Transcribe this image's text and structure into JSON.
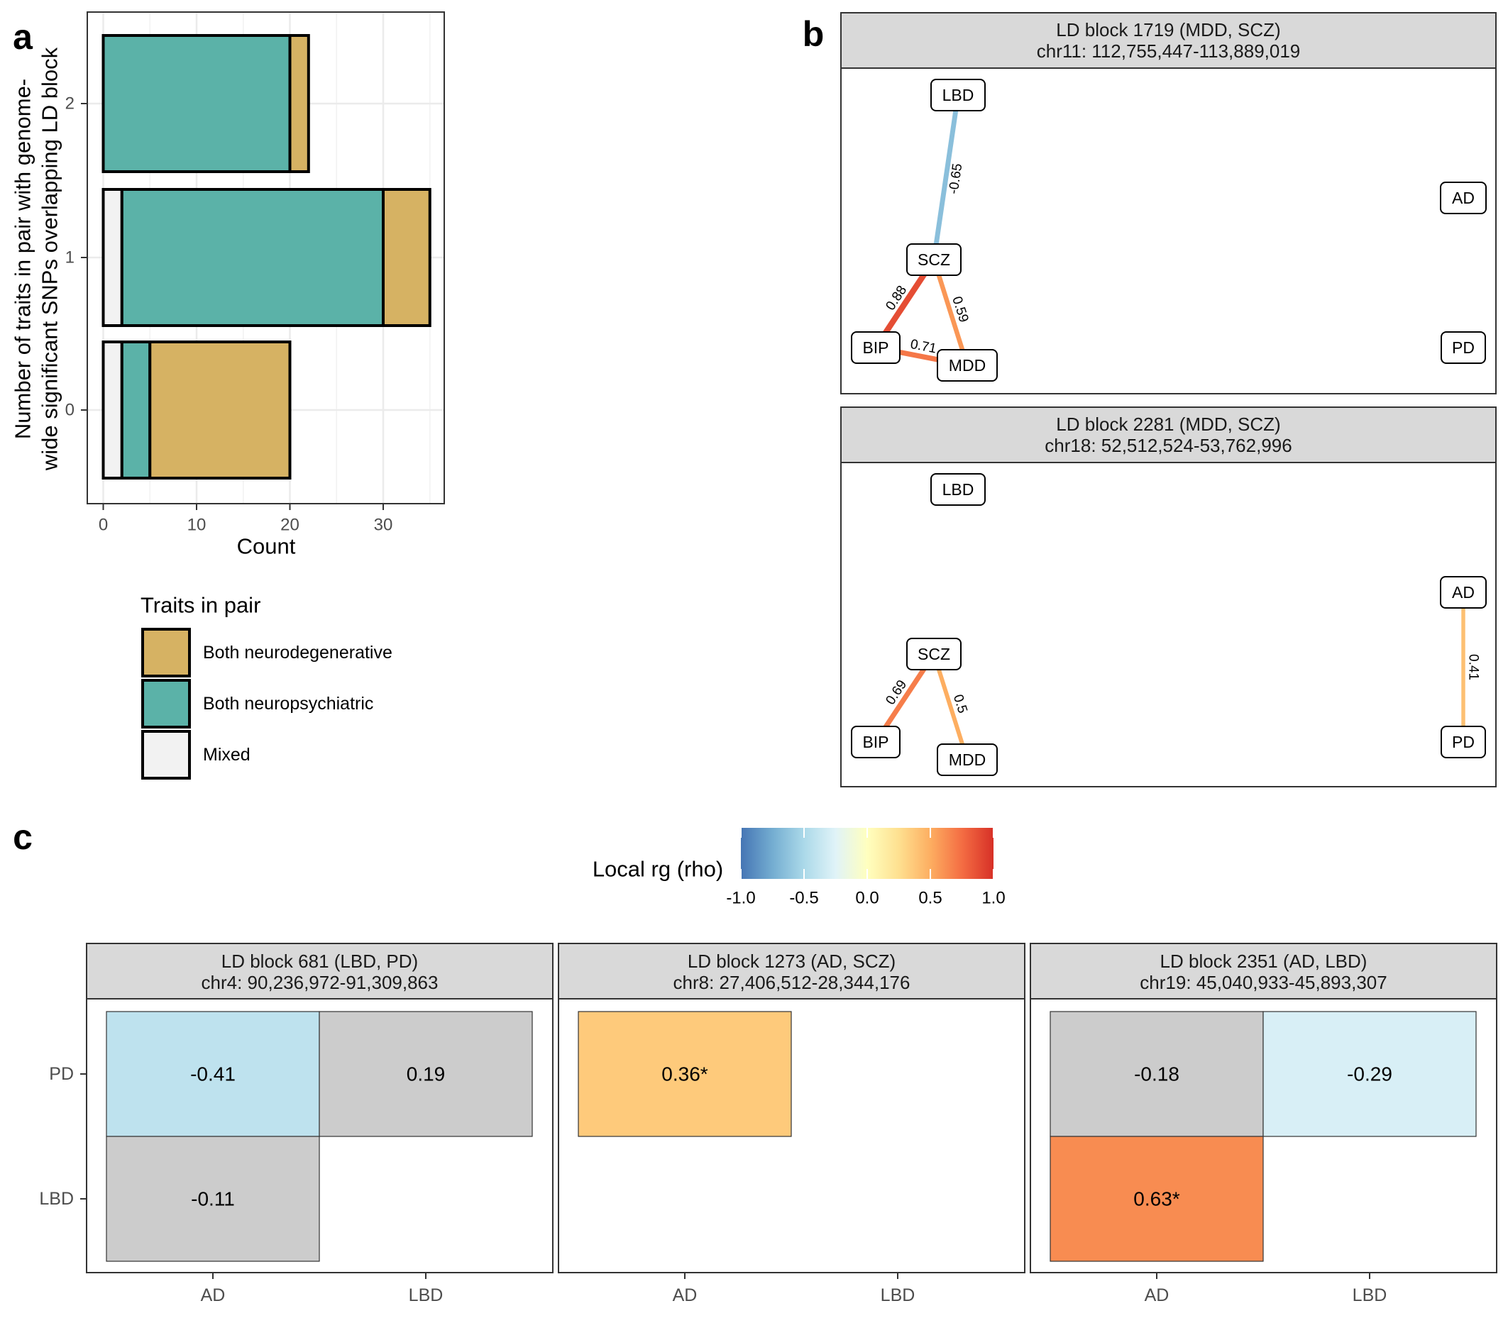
{
  "panel_labels": {
    "a": "a",
    "b": "b",
    "c": "c"
  },
  "colors": {
    "neurodegenerative": "#D6B263",
    "neuropsychiatric": "#5BB2A8",
    "mixed": "#F2F2F2",
    "na": "#CCCCCC",
    "strip": "#D9D9D9"
  },
  "chart_data": [
    {
      "type": "bar",
      "orientation": "horizontal",
      "stacked": true,
      "title": "",
      "xlabel": "Count",
      "ylabel_lines": [
        "Number of traits in pair with genome-",
        "wide significant SNPs overlapping LD block"
      ],
      "categories": [
        "0",
        "1",
        "2"
      ],
      "xlim": [
        0,
        36
      ],
      "xticks": [
        "0",
        "10",
        "20",
        "30"
      ],
      "series": [
        {
          "name": "Mixed",
          "values": [
            2,
            2,
            0
          ]
        },
        {
          "name": "Both neuropsychiatric",
          "values": [
            3,
            28,
            20
          ]
        },
        {
          "name": "Both neurodegenerative",
          "values": [
            15,
            5,
            2
          ]
        }
      ],
      "legend": {
        "title": "Traits in pair",
        "placement": "bottom",
        "items": [
          "Both neurodegenerative",
          "Both neuropsychiatric",
          "Mixed"
        ]
      },
      "grid": true
    },
    {
      "type": "network",
      "panels": [
        {
          "title": "LD block 1719 (MDD, SCZ)",
          "subtitle": "chr11: 112,755,447-113,889,019",
          "nodes": [
            "LBD",
            "AD",
            "SCZ",
            "BIP",
            "MDD",
            "PD"
          ],
          "edges": [
            {
              "from": "LBD",
              "to": "SCZ",
              "rho": -0.65,
              "label": "-0.65"
            },
            {
              "from": "SCZ",
              "to": "BIP",
              "rho": 0.88,
              "label": "0.88"
            },
            {
              "from": "SCZ",
              "to": "MDD",
              "rho": 0.59,
              "label": "0.59"
            },
            {
              "from": "BIP",
              "to": "MDD",
              "rho": 0.71,
              "label": "0.71"
            }
          ]
        },
        {
          "title": "LD block 2281 (MDD, SCZ)",
          "subtitle": "chr18: 52,512,524-53,762,996",
          "nodes": [
            "LBD",
            "AD",
            "SCZ",
            "BIP",
            "MDD",
            "PD"
          ],
          "edges": [
            {
              "from": "SCZ",
              "to": "BIP",
              "rho": 0.69,
              "label": "0.69"
            },
            {
              "from": "SCZ",
              "to": "MDD",
              "rho": 0.5,
              "label": "0.5"
            },
            {
              "from": "AD",
              "to": "PD",
              "rho": 0.41,
              "label": "0.41"
            }
          ]
        }
      ]
    },
    {
      "type": "heatmap",
      "colorbar": {
        "title": "Local rg (rho)",
        "range": [
          -1,
          1
        ],
        "ticks": [
          "-1.0",
          "-0.5",
          "0.0",
          "0.5",
          "1.0"
        ]
      },
      "x_categories": [
        "AD",
        "LBD"
      ],
      "y_categories": [
        "PD",
        "LBD"
      ],
      "panels": [
        {
          "title": "LD block 681 (LBD, PD)",
          "subtitle": "chr4: 90,236,972-91,309,863",
          "cells": [
            {
              "x": "AD",
              "y": "PD",
              "rho": -0.41,
              "significant": true,
              "label": "-0.41"
            },
            {
              "x": "LBD",
              "y": "PD",
              "rho": 0.19,
              "significant": false,
              "label": "0.19"
            },
            {
              "x": "AD",
              "y": "LBD",
              "rho": -0.11,
              "significant": false,
              "label": "-0.11"
            }
          ]
        },
        {
          "title": "LD block 1273 (AD, SCZ)",
          "subtitle": "chr8: 27,406,512-28,344,176",
          "cells": [
            {
              "x": "AD",
              "y": "PD",
              "rho": 0.36,
              "significant": true,
              "label": "0.36*"
            }
          ]
        },
        {
          "title": "LD block 2351 (AD, LBD)",
          "subtitle": "chr19: 45,040,933-45,893,307",
          "cells": [
            {
              "x": "AD",
              "y": "PD",
              "rho": -0.18,
              "significant": false,
              "label": "-0.18"
            },
            {
              "x": "LBD",
              "y": "PD",
              "rho": -0.29,
              "significant": true,
              "label": "-0.29"
            },
            {
              "x": "AD",
              "y": "LBD",
              "rho": 0.63,
              "significant": true,
              "label": "0.63*"
            }
          ]
        }
      ]
    }
  ]
}
